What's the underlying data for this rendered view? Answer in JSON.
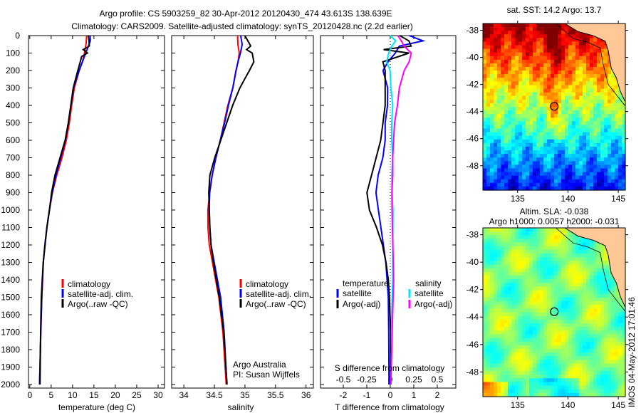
{
  "title": {
    "line1": "Argo profile: CS 5903259_82 30-Apr-2012 20120430_474 43.613S 138.639E",
    "line2": "Climatology: CARS2009. Satellite-adjusted climatology: synTS_20120428.nc (2.2d earlier)"
  },
  "colors": {
    "climatology": "#ff0000",
    "satellite": "#0000ff",
    "argo": "#000000",
    "sal_satellite": "#00e5ff",
    "sal_argo": "#ff00ff"
  },
  "chart_data": [
    {
      "type": "line",
      "xlabel": "temperature (deg C)",
      "ylabel": "depth",
      "xlim": [
        -0.3,
        31.5
      ],
      "ylim": [
        2106,
        0
      ],
      "xticks": [
        "0",
        "5",
        "10",
        "15",
        "20",
        "25",
        "30"
      ],
      "xtick_values": [
        0,
        5,
        10,
        15,
        20,
        25,
        30
      ],
      "yticks": [
        "0",
        "100",
        "200",
        "300",
        "400",
        "500",
        "600",
        "700",
        "800",
        "900",
        "1000",
        "1100",
        "1200",
        "1300",
        "1400",
        "1500",
        "1600",
        "1700",
        "1800",
        "1900",
        "2000"
      ],
      "ytick_values": [
        0,
        100,
        200,
        300,
        400,
        500,
        600,
        700,
        800,
        900,
        1000,
        1100,
        1200,
        1300,
        1400,
        1500,
        1600,
        1700,
        1800,
        1900,
        2000
      ],
      "legend": [
        "climatology",
        "satellite-adj. clim.",
        "Argo(..raw -QC)"
      ],
      "series": [
        {
          "name": "climatology",
          "color": "#ff0000",
          "depth": [
            0,
            50,
            100,
            150,
            200,
            300,
            400,
            500,
            600,
            700,
            800,
            900,
            1000,
            1100,
            1200,
            1300,
            1400,
            1500,
            1700,
            2000
          ],
          "values": [
            13.3,
            13.1,
            12.7,
            12.2,
            11.5,
            10.4,
            9.8,
            9.3,
            8.6,
            7.6,
            6.4,
            5.4,
            4.7,
            4.1,
            3.6,
            3.2,
            3.0,
            2.8,
            2.6,
            2.4
          ]
        },
        {
          "name": "satellite-adj. clim.",
          "color": "#0000ff",
          "depth": [
            0,
            30,
            60,
            100,
            150,
            200,
            300,
            400,
            500,
            600,
            700,
            800,
            900,
            1000,
            1100,
            1200,
            1300,
            1400,
            1500,
            1700,
            2000
          ],
          "values": [
            14.1,
            14.2,
            13.8,
            13.0,
            12.3,
            11.6,
            10.3,
            9.7,
            9.1,
            8.4,
            7.3,
            6.2,
            5.3,
            4.6,
            4.0,
            3.5,
            3.1,
            2.9,
            2.7,
            2.5,
            2.3
          ]
        },
        {
          "name": "Argo(..raw -QC)",
          "color": "#000000",
          "depth": [
            0,
            30,
            60,
            80,
            100,
            120,
            150,
            200,
            300,
            400,
            500,
            600,
            700,
            800,
            900,
            1000,
            1100,
            1200,
            1300,
            1400,
            1500,
            1700,
            2000
          ],
          "values": [
            13.7,
            13.9,
            14.0,
            12.4,
            13.5,
            12.2,
            11.9,
            11.3,
            10.2,
            9.6,
            9.0,
            8.2,
            7.0,
            5.8,
            5.0,
            4.5,
            3.9,
            3.5,
            3.1,
            2.9,
            2.7,
            2.5,
            2.3
          ]
        }
      ]
    },
    {
      "type": "line",
      "xlabel": "salinity",
      "xlim": [
        33.8,
        36.12
      ],
      "ylim": [
        2106,
        0
      ],
      "xticks": [
        "34",
        "34.5",
        "35",
        "35.5",
        "36"
      ],
      "xtick_values": [
        34,
        34.5,
        35,
        35.5,
        36
      ],
      "legend": [
        "climatology",
        "satellite-adj. clim.",
        "Argo(..raw -QC)"
      ],
      "annotation": {
        "line1": "Argo Australia",
        "line2": "PI: Susan Wijffels"
      },
      "series": [
        {
          "name": "climatology",
          "color": "#ff0000",
          "depth": [
            0,
            50,
            100,
            150,
            200,
            300,
            400,
            500,
            600,
            700,
            800,
            900,
            1000,
            1100,
            1200,
            1300,
            1400,
            1500,
            1700,
            2000
          ],
          "values": [
            34.88,
            34.88,
            34.9,
            34.88,
            34.85,
            34.8,
            34.72,
            34.66,
            34.6,
            34.53,
            34.47,
            34.43,
            34.4,
            34.4,
            34.42,
            34.47,
            34.52,
            34.57,
            34.64,
            34.7
          ]
        },
        {
          "name": "satellite-adj. clim.",
          "color": "#0000ff",
          "depth": [
            0,
            50,
            100,
            150,
            200,
            300,
            400,
            500,
            600,
            700,
            800,
            900,
            1000,
            1100,
            1200,
            1300,
            1400,
            1500,
            1700,
            2000
          ],
          "values": [
            34.93,
            34.95,
            34.92,
            34.88,
            34.85,
            34.8,
            34.73,
            34.67,
            34.6,
            34.53,
            34.47,
            34.43,
            34.42,
            34.43,
            34.45,
            34.5,
            34.55,
            34.6,
            34.66,
            34.71
          ]
        },
        {
          "name": "Argo(..raw -QC)",
          "color": "#000000",
          "depth": [
            0,
            30,
            60,
            80,
            100,
            150,
            200,
            250,
            300,
            400,
            500,
            600,
            700,
            800,
            900,
            1000,
            1100,
            1200,
            1300,
            1400,
            1500,
            1700,
            2000
          ],
          "values": [
            35.0,
            35.05,
            35.1,
            35.02,
            35.12,
            35.15,
            35.08,
            35.0,
            34.92,
            34.8,
            34.7,
            34.6,
            34.5,
            34.42,
            34.4,
            34.41,
            34.42,
            34.44,
            34.48,
            34.53,
            34.58,
            34.65,
            34.7
          ]
        }
      ]
    },
    {
      "type": "line",
      "xlabel": "T difference from climatology",
      "xlim": [
        -2.97,
        2.79
      ],
      "ylim": [
        2106,
        0
      ],
      "xticks": [
        "-2",
        "-1",
        "0",
        "1",
        "2"
      ],
      "xtick_values": [
        -2,
        -1,
        0,
        1,
        2
      ],
      "top_label": "S difference from climatology",
      "s_xticks": [
        "-0.5",
        "-0.25",
        "0",
        "0.25",
        "0.5"
      ],
      "s_xtick_values": [
        -0.5,
        -0.25,
        0,
        0.25,
        0.5
      ],
      "legend": {
        "temperature_title": "temperature",
        "salinity_title": "salinity",
        "t_satellite": "satellite",
        "t_argo": "Argo(-adj)",
        "s_satellite": "satellite",
        "s_argo": "Argo(-adj)"
      },
      "series": [
        {
          "name": "temperature satellite",
          "axis": "T",
          "color": "#0000ff",
          "depth": [
            0,
            30,
            60,
            100,
            150,
            200,
            300,
            400,
            500,
            600,
            700,
            800,
            900,
            1000,
            1100,
            1200,
            1300,
            1400,
            1500,
            1700,
            2000
          ],
          "values": [
            0.8,
            1.4,
            0.4,
            0.2,
            -0.1,
            -0.3,
            -0.1,
            -0.1,
            -0.2,
            -0.2,
            -0.3,
            -0.5,
            -0.6,
            -0.5,
            -0.4,
            -0.3,
            -0.2,
            -0.15,
            -0.1,
            -0.08,
            -0.05
          ]
        },
        {
          "name": "temperature Argo(-adj)",
          "axis": "T",
          "color": "#000000",
          "depth": [
            0,
            30,
            60,
            80,
            100,
            150,
            200,
            300,
            400,
            500,
            600,
            700,
            800,
            900,
            1000,
            1100,
            1200,
            1300,
            1400,
            1500,
            1700,
            2000
          ],
          "values": [
            0.4,
            0.8,
            0.9,
            -0.3,
            0.8,
            -0.3,
            -0.2,
            -0.2,
            -0.2,
            -0.3,
            -0.4,
            -0.6,
            -0.8,
            -1.0,
            -0.9,
            -0.6,
            -0.35,
            -0.2,
            -0.1,
            -0.05,
            0.0,
            0.0
          ]
        },
        {
          "name": "salinity satellite",
          "axis": "S",
          "color": "#00e5ff",
          "depth": [
            0,
            30,
            60,
            100,
            150,
            200,
            300,
            400,
            500,
            600,
            700,
            800,
            900,
            1000,
            1200,
            1400,
            1600,
            1800,
            2000
          ],
          "values": [
            0.0,
            0.06,
            0.02,
            -0.02,
            -0.04,
            0.0,
            0.01,
            0.03,
            0.02,
            0.02,
            0.03,
            0.02,
            0.02,
            0.03,
            0.03,
            0.03,
            0.02,
            0.02,
            0.01
          ]
        },
        {
          "name": "salinity Argo(-adj)",
          "axis": "S",
          "color": "#ff00ff",
          "depth": [
            0,
            30,
            60,
            100,
            150,
            200,
            300,
            400,
            500,
            600,
            700,
            800,
            900,
            1000,
            1200,
            1400,
            1600,
            1800,
            2000
          ],
          "values": [
            0.08,
            0.12,
            0.15,
            0.22,
            0.2,
            0.15,
            0.1,
            0.08,
            0.05,
            0.04,
            0.03,
            0.03,
            0.02,
            0.02,
            0.03,
            0.04,
            0.03,
            0.02,
            0.01
          ]
        }
      ]
    },
    {
      "type": "heatmap",
      "title": "sat. SST: 14.2 Argo: 13.7",
      "xlim": [
        131.55,
        145.7
      ],
      "ylim": [
        -49.8,
        -37.5
      ],
      "xticks": [
        "135",
        "140",
        "145"
      ],
      "xtick_values": [
        135,
        140,
        145
      ],
      "yticks": [
        "-38",
        "-40",
        "-42",
        "-44",
        "-46",
        "-48"
      ],
      "ytick_values": [
        -38,
        -40,
        -42,
        -44,
        -46,
        -48
      ],
      "marker": {
        "lon": 138.639,
        "lat": -43.613
      }
    },
    {
      "type": "heatmap",
      "title_line1": "Altim. SLA: -0.038",
      "title_line2": "Argo h1000: 0.0057 h2000: -0.031",
      "xlim": [
        131.55,
        145.7
      ],
      "ylim": [
        -49.8,
        -37.5
      ],
      "xticks": [
        "135",
        "140",
        "145"
      ],
      "xtick_values": [
        135,
        140,
        145
      ],
      "yticks": [
        "-38",
        "-40",
        "-42",
        "-44",
        "-46",
        "-48"
      ],
      "ytick_values": [
        -38,
        -40,
        -42,
        -44,
        -46,
        -48
      ],
      "marker": {
        "lon": 138.639,
        "lat": -43.613
      }
    }
  ],
  "watermark": "IMOS 04-May-2012 17:01:46"
}
